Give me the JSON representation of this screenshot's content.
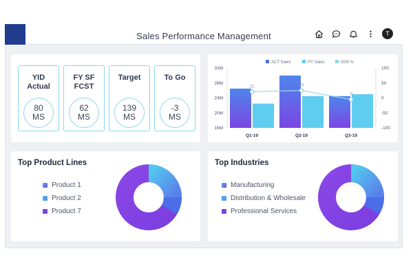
{
  "header": {
    "title": "Sales Performance Management",
    "avatar_letter": "T",
    "icons": [
      "home-icon",
      "chat-icon",
      "bell-icon",
      "more-vertical-icon"
    ]
  },
  "kpis": [
    {
      "label": "YID\nActual",
      "value": "80\nMS"
    },
    {
      "label": "FY SF\nFCST",
      "value": "62\nMS"
    },
    {
      "label": "Target",
      "value": "139\nMS"
    },
    {
      "label": "To Go",
      "value": "-3\nMS"
    }
  ],
  "chart_data": {
    "type": "bar",
    "categories": [
      "Q1-19",
      "Q2-19",
      "Q3-19"
    ],
    "series": [
      {
        "name": "ACT Sales",
        "values": [
          26.5,
          30,
          24.5
        ],
        "color": "#6a7cf0"
      },
      {
        "name": "PY Sales",
        "values": [
          22.5,
          24.5,
          25
        ],
        "color": "#5fcdf0"
      },
      {
        "name": "VAR %",
        "values": [
          21,
          25,
          -5
        ],
        "color": "#8fd3ee",
        "kind": "line",
        "axis": "right"
      }
    ],
    "y_left": {
      "ticks": [
        "16M",
        "20M",
        "24M",
        "28M",
        "32M"
      ],
      "min": 16,
      "max": 32
    },
    "y_right": {
      "ticks": [
        "100",
        "50",
        "0",
        "-50",
        "-100"
      ],
      "min": -100,
      "max": 100
    },
    "data_labels": [
      "21",
      "25",
      "-5"
    ],
    "legend_position": "top"
  },
  "product_lines": {
    "title": "Top Product Lines",
    "items": [
      "Product 1",
      "Product 2",
      "Product 7"
    ],
    "colors": [
      "#5b8ef0",
      "#48b3ec",
      "#7b46e0"
    ]
  },
  "industries": {
    "title": "Top Industries",
    "items": [
      "Manufacturing",
      "Distribution & Wholesale",
      "Professional Services"
    ],
    "colors": [
      "#5b8ef0",
      "#48b3ec",
      "#7b46e0"
    ]
  }
}
